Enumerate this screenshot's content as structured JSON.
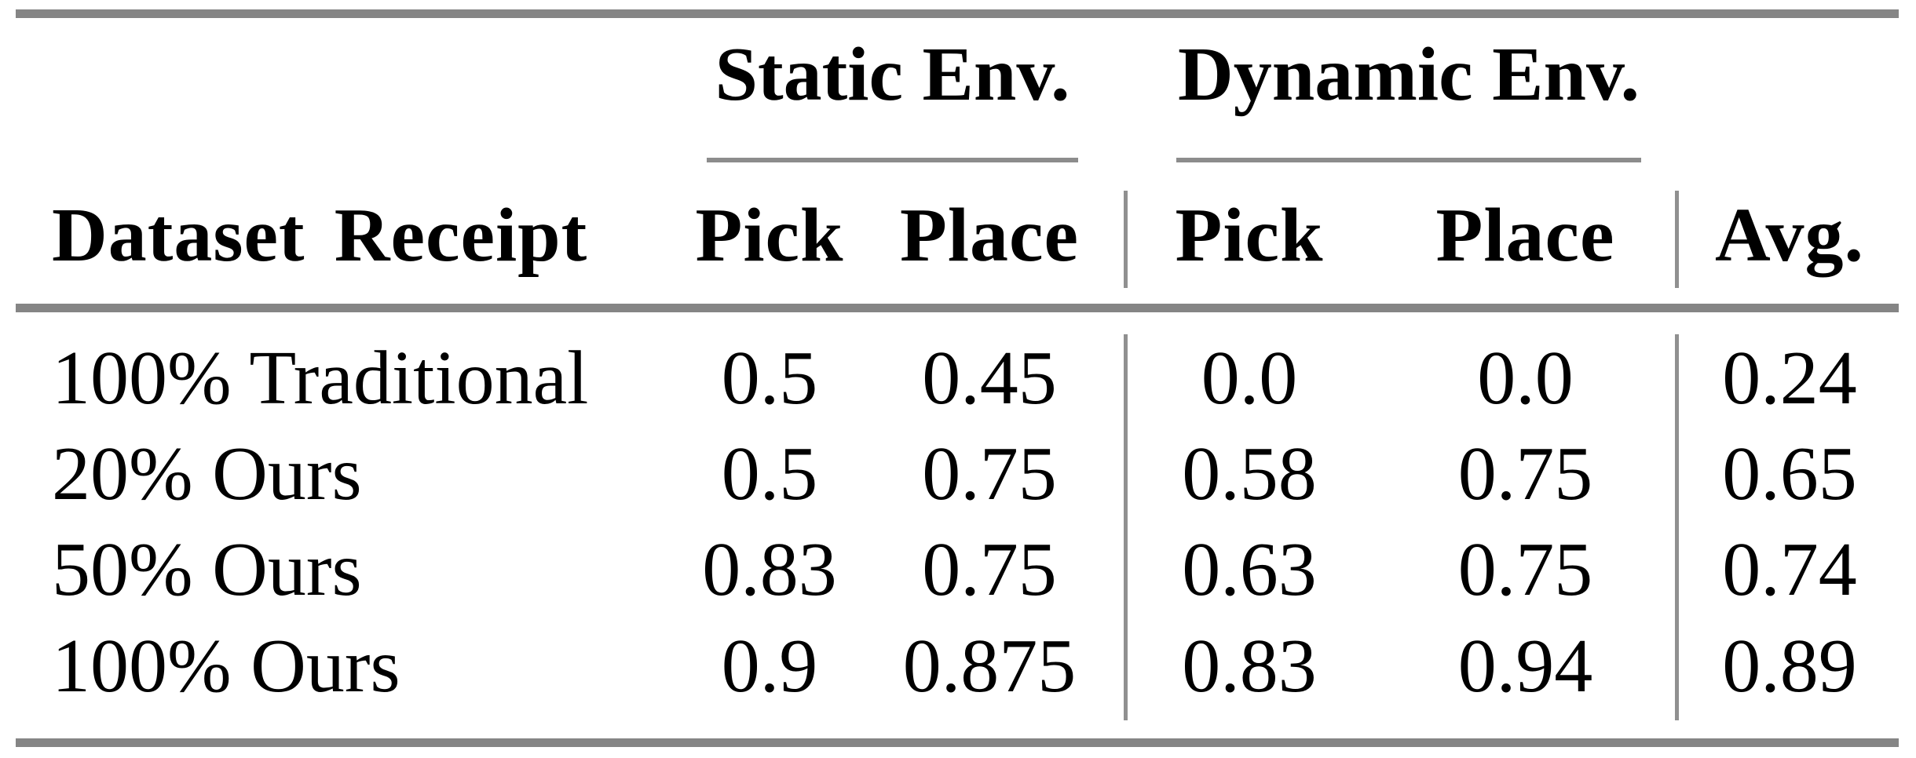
{
  "table": {
    "group_headers": {
      "static": "Static Env.",
      "dynamic": "Dynamic Env."
    },
    "columns": {
      "dataset": "Dataset Receipt",
      "static_pick": "Pick",
      "static_place": "Place",
      "dynamic_pick": "Pick",
      "dynamic_place": "Place",
      "avg": "Avg."
    },
    "rows": [
      {
        "label": "100% Traditional",
        "static_pick": "0.5",
        "static_place": "0.45",
        "dynamic_pick": "0.0",
        "dynamic_place": "0.0",
        "avg": "0.24"
      },
      {
        "label": "20% Ours",
        "static_pick": "0.5",
        "static_place": "0.75",
        "dynamic_pick": "0.58",
        "dynamic_place": "0.75",
        "avg": "0.65"
      },
      {
        "label": "50% Ours",
        "static_pick": "0.83",
        "static_place": "0.75",
        "dynamic_pick": "0.63",
        "dynamic_place": "0.75",
        "avg": "0.74"
      },
      {
        "label": "100% Ours",
        "static_pick": "0.9",
        "static_place": "0.875",
        "dynamic_pick": "0.83",
        "dynamic_place": "0.94",
        "avg": "0.89"
      }
    ],
    "colors": {
      "rule_gray": "#858585",
      "text": "#000000",
      "background": "#ffffff"
    }
  }
}
